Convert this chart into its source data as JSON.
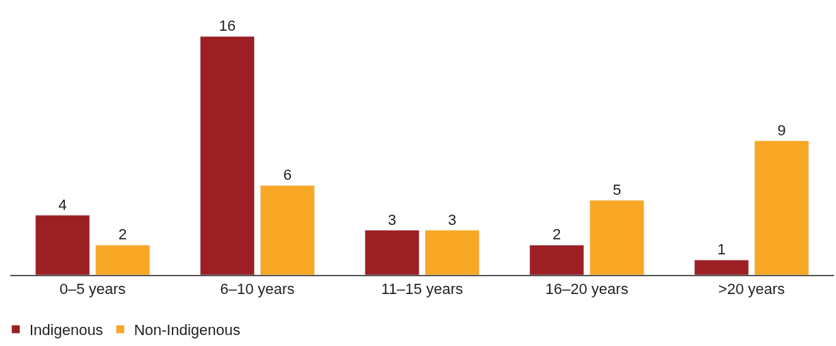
{
  "chart_data": {
    "type": "bar",
    "categories": [
      "0–5 years",
      "6–10 years",
      "11–15 years",
      "16–20 years",
      ">20 years"
    ],
    "series": [
      {
        "name": "Indigenous",
        "color": "#9b1f23",
        "values": [
          4,
          16,
          3,
          2,
          1
        ]
      },
      {
        "name": "Non-Indigenous",
        "color": "#f9a825",
        "values": [
          2,
          6,
          3,
          5,
          9
        ]
      }
    ],
    "data_labels": true,
    "legend": "bottom left",
    "tick_labels": "x"
  }
}
